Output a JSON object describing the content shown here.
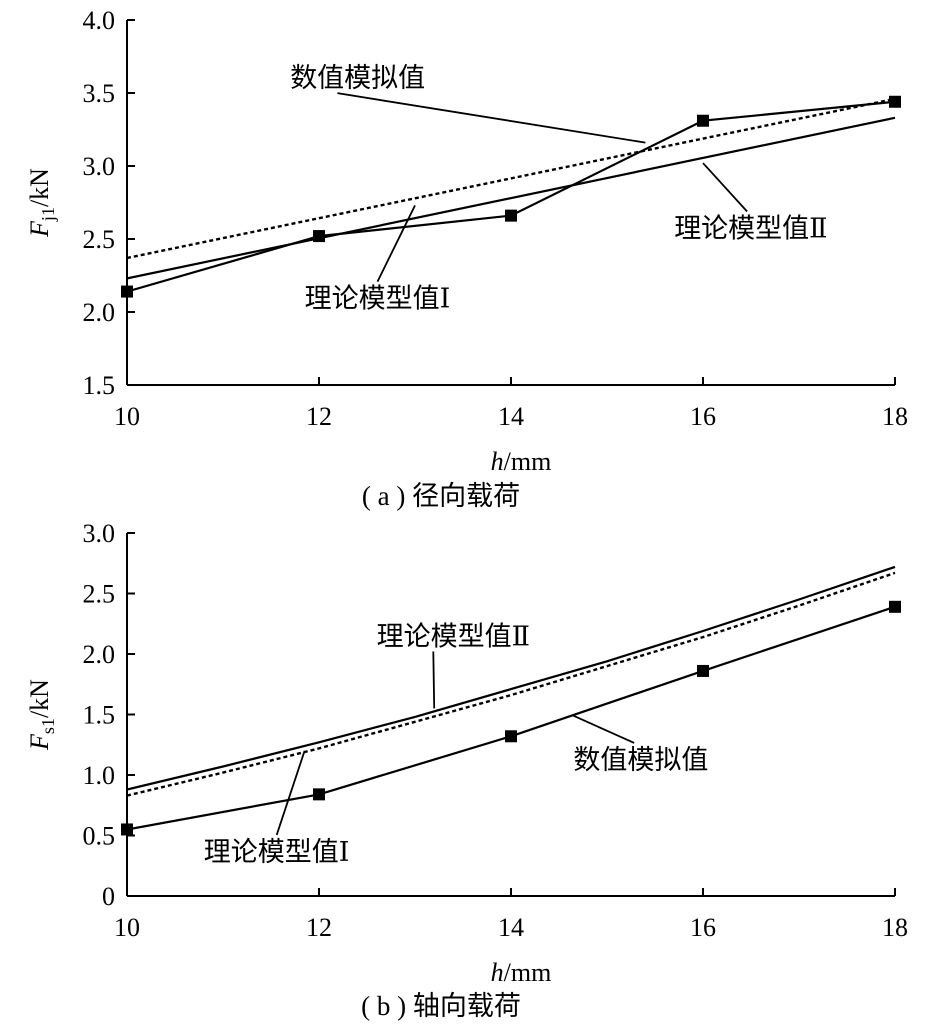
{
  "chart_data": [
    {
      "type": "line",
      "caption": "( a ) 径向载荷",
      "xlabel_italic": "h",
      "xlabel_unit": "/mm",
      "ylabel_main": "F",
      "ylabel_sub": "j1",
      "ylabel_unit": "/kN",
      "xlim": [
        10,
        18
      ],
      "ylim": [
        1.5,
        4.0
      ],
      "xticks": [
        10,
        12,
        14,
        16,
        18
      ],
      "xtick_labels": [
        "10",
        "12",
        "14",
        "16",
        "18"
      ],
      "yticks": [
        1.5,
        2.0,
        2.5,
        3.0,
        3.5,
        4.0
      ],
      "ytick_labels": [
        "1.5",
        "2.0",
        "2.5",
        "3.0",
        "3.5",
        "4.0"
      ],
      "series": [
        {
          "name": "数值模拟值",
          "style": "solid-square-markers",
          "x": [
            10,
            12,
            14,
            16,
            18
          ],
          "y": [
            2.14,
            2.52,
            2.66,
            3.31,
            3.44
          ]
        },
        {
          "name": "理论模型值Ⅰ",
          "style": "dotted",
          "x": [
            10,
            18
          ],
          "y": [
            2.37,
            3.46
          ]
        },
        {
          "name": "理论模型值Ⅱ",
          "style": "solid",
          "x": [
            10,
            18
          ],
          "y": [
            2.23,
            3.33
          ]
        }
      ],
      "annotations": [
        {
          "series": "数值模拟值",
          "text": "数值模拟值",
          "at": [
            15.4,
            3.16
          ],
          "text_pos": [
            11.7,
            3.54
          ],
          "anchor": "start"
        },
        {
          "series": "理论模型值Ⅱ",
          "text": "理论模型值Ⅱ",
          "at": [
            16.0,
            3.02
          ],
          "text_pos": [
            15.7,
            2.51
          ],
          "anchor": "start"
        },
        {
          "series": "理论模型值Ⅰ",
          "text": "理论模型值Ⅰ",
          "at": [
            13.0,
            2.73
          ],
          "text_pos": [
            11.85,
            2.03
          ],
          "anchor": "start"
        }
      ]
    },
    {
      "type": "line",
      "caption": "( b ) 轴向载荷",
      "xlabel_italic": "h",
      "xlabel_unit": "/mm",
      "ylabel_main": "F",
      "ylabel_sub": "s1",
      "ylabel_unit": "/kN",
      "xlim": [
        10,
        18
      ],
      "ylim": [
        0,
        3.0
      ],
      "xticks": [
        10,
        12,
        14,
        16,
        18
      ],
      "xtick_labels": [
        "10",
        "12",
        "14",
        "16",
        "18"
      ],
      "yticks": [
        0,
        0.5,
        1.0,
        1.5,
        2.0,
        2.5,
        3.0
      ],
      "ytick_labels": [
        "0",
        "0.5",
        "1.0",
        "1.5",
        "2.0",
        "2.5",
        "3.0"
      ],
      "series": [
        {
          "name": "数值模拟值",
          "style": "solid-square-markers",
          "x": [
            10,
            12,
            14,
            16,
            18
          ],
          "y": [
            0.55,
            0.84,
            1.32,
            1.86,
            2.39
          ]
        },
        {
          "name": "理论模型值Ⅱ",
          "style": "solid",
          "x": [
            10,
            11,
            12,
            13,
            14,
            15,
            16,
            17,
            18
          ],
          "y": [
            0.88,
            1.07,
            1.27,
            1.48,
            1.71,
            1.94,
            2.19,
            2.45,
            2.72
          ]
        },
        {
          "name": "理论模型值Ⅰ",
          "style": "dotted",
          "x": [
            10,
            11,
            12,
            13,
            14,
            15,
            16,
            17,
            18
          ],
          "y": [
            0.83,
            1.02,
            1.22,
            1.44,
            1.66,
            1.9,
            2.14,
            2.4,
            2.67
          ]
        }
      ],
      "annotations": [
        {
          "series": "理论模型值Ⅱ",
          "text": "理论模型值Ⅱ",
          "at": [
            13.2,
            1.55
          ],
          "text_pos": [
            12.6,
            2.07
          ],
          "anchor": "start"
        },
        {
          "series": "数值模拟值",
          "text": "数值模拟值",
          "at": [
            14.65,
            1.49
          ],
          "text_pos": [
            14.65,
            1.05
          ],
          "anchor": "start"
        },
        {
          "series": "理论模型值Ⅰ",
          "text": "理论模型值Ⅰ",
          "at": [
            11.85,
            1.2
          ],
          "text_pos": [
            10.8,
            0.29
          ],
          "anchor": "start"
        }
      ]
    }
  ]
}
